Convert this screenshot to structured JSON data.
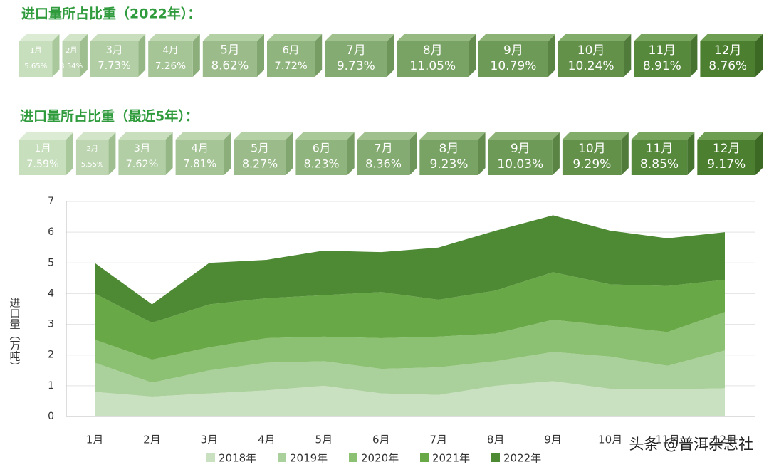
{
  "sections": [
    {
      "title": "进口量所占比重（2022年）：",
      "categories": [
        "1月",
        "2月",
        "3月",
        "4月",
        "5月",
        "6月",
        "7月",
        "8月",
        "9月",
        "10月",
        "11月",
        "12月"
      ],
      "values": [
        5.65,
        3.54,
        7.73,
        7.26,
        8.62,
        7.72,
        9.73,
        11.05,
        10.79,
        10.24,
        8.91,
        8.76
      ],
      "value_labels": [
        "5.65%",
        "3.54%",
        "7.73%",
        "7.26%",
        "8.62%",
        "7.72%",
        "9.73%",
        "11.05%",
        "10.79%",
        "10.24%",
        "8.91%",
        "8.76%"
      ]
    },
    {
      "title": "进口量所占比重（最近5年）：",
      "categories": [
        "1月",
        "2月",
        "3月",
        "4月",
        "5月",
        "6月",
        "7月",
        "8月",
        "9月",
        "10月",
        "11月",
        "12月"
      ],
      "values": [
        7.59,
        5.55,
        7.62,
        7.81,
        8.27,
        8.23,
        8.36,
        9.23,
        10.03,
        9.29,
        8.85,
        9.17
      ],
      "value_labels": [
        "7.59%",
        "5.55%",
        "7.62%",
        "7.81%",
        "8.27%",
        "8.23%",
        "8.36%",
        "9.23%",
        "10.03%",
        "9.29%",
        "8.85%",
        "9.17%"
      ]
    }
  ],
  "chart_data": {
    "type": "stacked_area",
    "y_label": "进口量（万吨）",
    "categories": [
      "1月",
      "2月",
      "3月",
      "4月",
      "5月",
      "6月",
      "7月",
      "8月",
      "9月",
      "10月",
      "11月",
      "12月"
    ],
    "series": [
      {
        "name": "2018年",
        "color": "#c9e0c1",
        "values": [
          0.8,
          0.65,
          0.75,
          0.85,
          1.0,
          0.75,
          0.7,
          1.0,
          1.15,
          0.9,
          0.88,
          0.92
        ]
      },
      {
        "name": "2019年",
        "color": "#aad09b",
        "values": [
          0.95,
          0.45,
          0.75,
          0.9,
          0.8,
          0.8,
          0.9,
          0.8,
          0.95,
          1.05,
          0.77,
          1.23
        ]
      },
      {
        "name": "2020年",
        "color": "#8cc173",
        "values": [
          0.75,
          0.75,
          0.75,
          0.8,
          0.8,
          1.0,
          1.0,
          0.9,
          1.05,
          1.0,
          1.1,
          1.25
        ]
      },
      {
        "name": "2021年",
        "color": "#69a847",
        "values": [
          1.5,
          1.2,
          1.4,
          1.3,
          1.35,
          1.5,
          1.2,
          1.4,
          1.55,
          1.35,
          1.5,
          1.05
        ]
      },
      {
        "name": "2022年",
        "color": "#4e8934",
        "values": [
          1.0,
          0.6,
          1.35,
          1.25,
          1.45,
          1.3,
          1.7,
          1.95,
          1.85,
          1.75,
          1.55,
          1.55
        ]
      }
    ],
    "ylim": [
      0,
      7
    ],
    "yticks": [
      0,
      1,
      2,
      3,
      4,
      5,
      6,
      7
    ],
    "grid": true
  },
  "watermark": "头条 @普洱杂志社"
}
